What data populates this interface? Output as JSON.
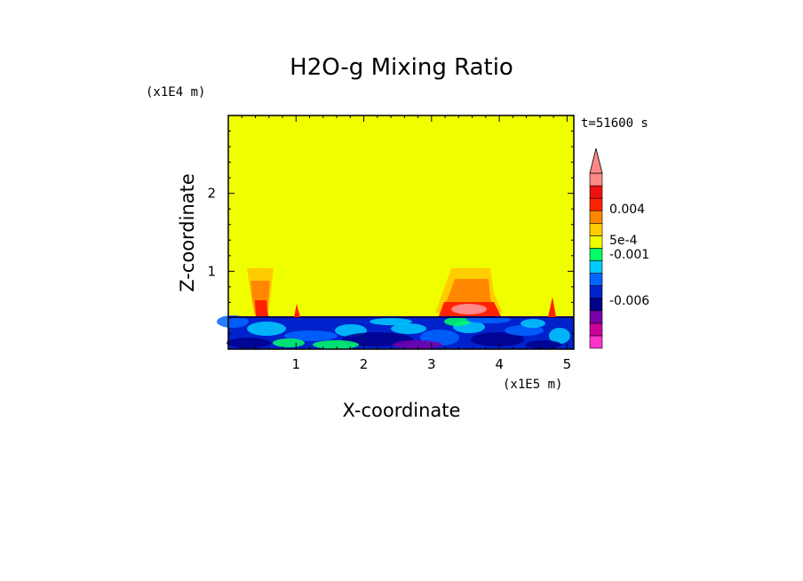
{
  "chart_data": {
    "type": "heatmap",
    "title": "H2O-g Mixing Ratio",
    "xlabel": "X-coordinate",
    "ylabel": "Z-coordinate",
    "x_unit": "(x1E5 m)",
    "y_unit": "(x1E4 m)",
    "time_label": "t=51600 s",
    "xlim": [
      0,
      5.1
    ],
    "ylim": [
      0,
      3.0
    ],
    "x_ticks": [
      1,
      2,
      3,
      4,
      5
    ],
    "y_ticks": [
      1,
      2
    ],
    "background_color": "#f0ff00",
    "colorbar": {
      "colors": [
        "#ff33cc",
        "#cc0099",
        "#7700aa",
        "#00008b",
        "#0022cc",
        "#0066ff",
        "#00ccff",
        "#00ff66",
        "#f0ff00",
        "#ffcc00",
        "#ff8800",
        "#ff2200",
        "#ee1111",
        "#ff8888"
      ],
      "labels": [
        "0.004",
        "5e-4",
        "-0.001",
        "-0.006"
      ],
      "extend": "max"
    }
  }
}
